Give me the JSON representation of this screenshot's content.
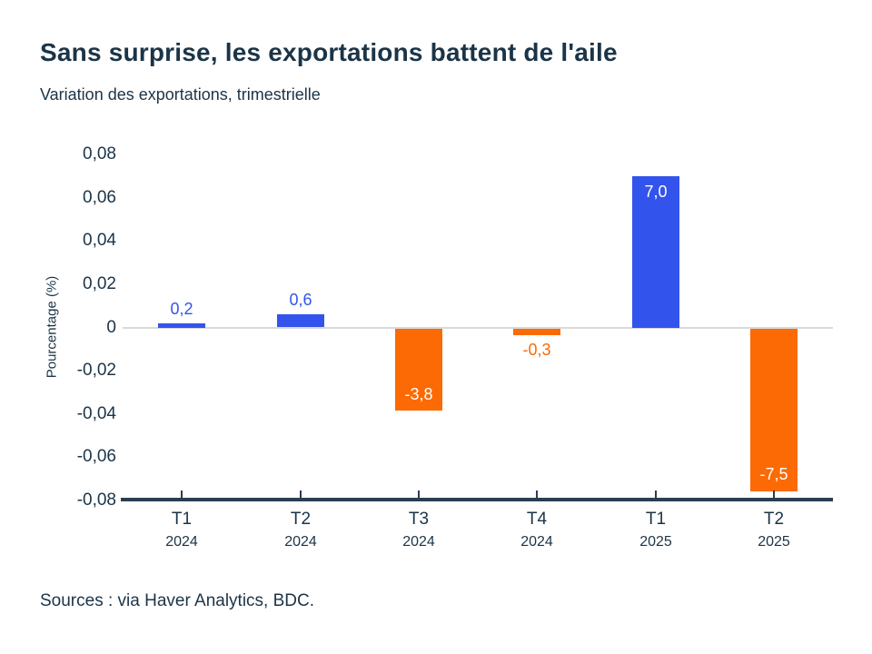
{
  "page": {
    "background": "#ffffff"
  },
  "header": {
    "title": "Sans surprise, les exportations battent de l'aile",
    "subtitle": "Variation des exportations, trimestrielle"
  },
  "source_note": "Sources : via Haver Analytics, BDC.",
  "colors": {
    "bar_positive_blue": "#3354ec",
    "bar_negative_orange": "#fb6a04",
    "text_dark_navy": "#1b3447",
    "axis_line_dark": "#2b3e50",
    "zero_line_gray": "#d9d9d9",
    "inside_label_white": "#ffffff",
    "background": "#ffffff"
  },
  "chart_data": {
    "type": "bar",
    "title": "Sans surprise, les exportations battent de l'aile",
    "subtitle": "Variation des exportations, trimestrielle",
    "xlabel": "",
    "ylabel": "Pourcentage (%)",
    "ylim": [
      -0.08,
      0.08
    ],
    "grid": "zero-line-only",
    "legend": "none",
    "categories": [
      {
        "quarter": "T1",
        "year": "2024"
      },
      {
        "quarter": "T2",
        "year": "2024"
      },
      {
        "quarter": "T3",
        "year": "2024"
      },
      {
        "quarter": "T4",
        "year": "2024"
      },
      {
        "quarter": "T1",
        "year": "2025"
      },
      {
        "quarter": "T2",
        "year": "2025"
      }
    ],
    "values_labelled_pct": [
      0.2,
      0.6,
      -3.8,
      -0.3,
      7.0,
      -7.5
    ],
    "values_axis_units": [
      0.002,
      0.006,
      -0.038,
      -0.003,
      0.07,
      -0.075
    ],
    "value_labels": [
      "0,2",
      "0,6",
      "-3,8",
      "-0,3",
      "7,0",
      "-7,5"
    ],
    "label_inside_bar": [
      false,
      false,
      true,
      false,
      true,
      true
    ],
    "bar_colors": [
      "#3354ec",
      "#3354ec",
      "#fb6a04",
      "#fb6a04",
      "#3354ec",
      "#fb6a04"
    ],
    "yticks": [
      {
        "value": 0.08,
        "label": "0,08"
      },
      {
        "value": 0.06,
        "label": "0,06"
      },
      {
        "value": 0.04,
        "label": "0,04"
      },
      {
        "value": 0.02,
        "label": "0,02"
      },
      {
        "value": 0,
        "label": "0"
      },
      {
        "value": -0.02,
        "label": "-0,02"
      },
      {
        "value": -0.04,
        "label": "-0,04"
      },
      {
        "value": -0.06,
        "label": "-0,06"
      },
      {
        "value": -0.08,
        "label": "-0,08"
      }
    ]
  }
}
